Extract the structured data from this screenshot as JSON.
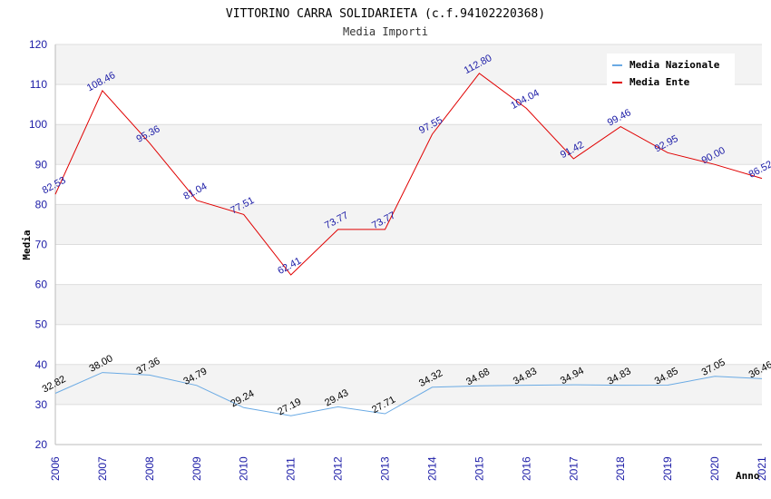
{
  "chart_data": {
    "type": "line",
    "title": "VITTORINO CARRA SOLIDARIETA (c.f.94102220368)",
    "subtitle": "Media Importi",
    "xlabel": "Anno",
    "ylabel": "Media",
    "ylim": [
      20,
      120
    ],
    "yticks": [
      "20",
      "30",
      "40",
      "50",
      "60",
      "70",
      "80",
      "90",
      "100",
      "110",
      "120"
    ],
    "categories": [
      "2006",
      "2007",
      "2008",
      "2009",
      "2010",
      "2011",
      "2012",
      "2013",
      "2014",
      "2015",
      "2016",
      "2017",
      "2018",
      "2019",
      "2020",
      "2021"
    ],
    "legend_position": "top-right",
    "series": [
      {
        "name": "Media Nazionale",
        "color": "#6aaae4",
        "label_color": "#000000",
        "values": [
          32.82,
          38.0,
          37.36,
          34.79,
          29.24,
          27.19,
          29.43,
          27.71,
          34.32,
          34.68,
          34.83,
          34.94,
          34.83,
          34.85,
          37.05,
          36.46
        ],
        "labels": [
          "32.82",
          "38.00",
          "37.36",
          "34.79",
          "29.24",
          "27.19",
          "29.43",
          "27.71",
          "34.32",
          "34.68",
          "34.83",
          "34.94",
          "34.83",
          "34.85",
          "37.05",
          "36.46"
        ]
      },
      {
        "name": "Media Ente",
        "color": "#e00000",
        "label_color": "#1a1aa6",
        "values": [
          82.53,
          108.46,
          95.36,
          81.04,
          77.51,
          62.41,
          73.77,
          73.77,
          97.55,
          112.8,
          104.04,
          91.42,
          99.46,
          92.95,
          90.0,
          86.52
        ],
        "labels": [
          "82.53",
          "108.46",
          "95.36",
          "81.04",
          "77.51",
          "62.41",
          "73.77",
          "73.77",
          "97.55",
          "112.80",
          "104.04",
          "91.42",
          "99.46",
          "92.95",
          "90.00",
          "86.52"
        ]
      }
    ],
    "band_colors": [
      "#ffffff",
      "#f3f3f3"
    ],
    "grid_color": "#dddddd"
  }
}
